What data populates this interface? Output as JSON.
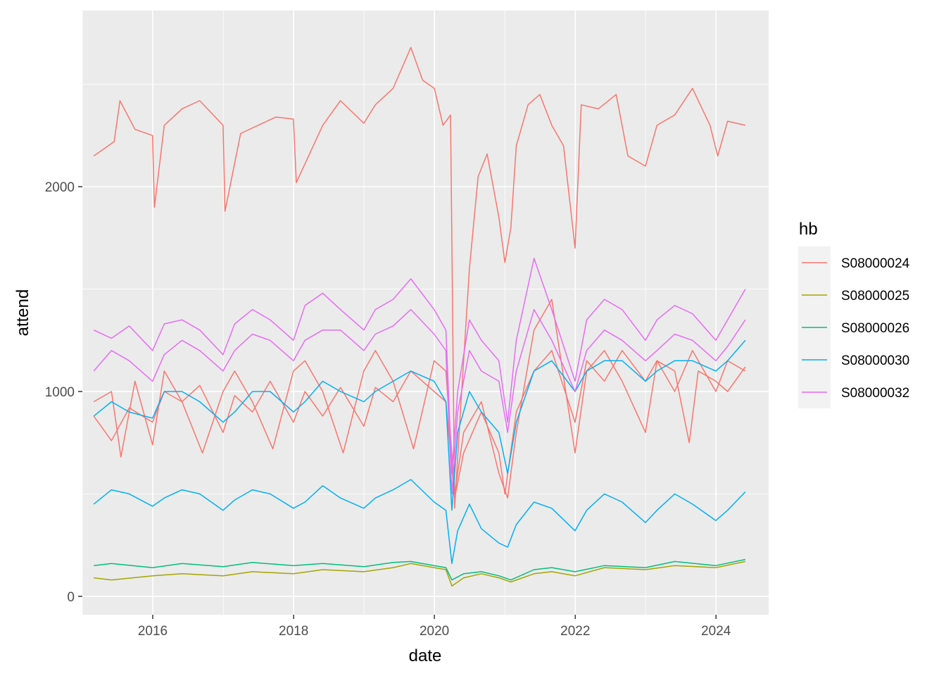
{
  "chart_data": {
    "type": "line",
    "xlabel": "date",
    "ylabel": "attend",
    "xlim": [
      "2015-01-01",
      "2024-09-30"
    ],
    "ylim": [
      -90,
      2860
    ],
    "x_ticks": [
      {
        "value": "2016-01-01",
        "label": "2016"
      },
      {
        "value": "2018-01-01",
        "label": "2018"
      },
      {
        "value": "2020-01-01",
        "label": "2020"
      },
      {
        "value": "2022-01-01",
        "label": "2022"
      },
      {
        "value": "2024-01-01",
        "label": "2024"
      }
    ],
    "x_minor_ticks": [
      "2015-01-01",
      "2017-01-01",
      "2019-01-01",
      "2021-01-01",
      "2023-01-01"
    ],
    "y_ticks": [
      0,
      1000,
      2000
    ],
    "y_minor_ticks": [
      500,
      1500,
      2500
    ],
    "grid": true,
    "legend_position": "right",
    "legend_title": "hb",
    "series": [
      {
        "name": "S08000024",
        "color": "#F8766D",
        "lines": [
          {
            "x": [
              "2015-03-01",
              "2015-06-15",
              "2015-07-15",
              "2015-10-01",
              "2015-12-31",
              "2016-01-10",
              "2016-03-01",
              "2016-06-01",
              "2016-09-01",
              "2016-12-31",
              "2017-01-10",
              "2017-04-01",
              "2017-07-01",
              "2017-10-01",
              "2017-12-31",
              "2018-01-15",
              "2018-06-01",
              "2018-09-01",
              "2018-12-31",
              "2019-03-01",
              "2019-06-01",
              "2019-09-01",
              "2019-11-01",
              "2020-01-01",
              "2020-02-15",
              "2020-03-25",
              "2020-04-15",
              "2020-05-15",
              "2020-07-01",
              "2020-08-15",
              "2020-10-01",
              "2020-12-01",
              "2021-01-01",
              "2021-02-01",
              "2021-03-01",
              "2021-05-01",
              "2021-07-01",
              "2021-09-01",
              "2021-11-01",
              "2021-12-31",
              "2022-02-01",
              "2022-05-01",
              "2022-08-01",
              "2022-10-01",
              "2022-12-31",
              "2023-03-01",
              "2023-06-01",
              "2023-09-01",
              "2023-12-01",
              "2024-01-10",
              "2024-03-01",
              "2024-06-01"
            ],
            "y": [
              2150,
              2220,
              2420,
              2280,
              2250,
              1900,
              2300,
              2380,
              2420,
              2300,
              1880,
              2260,
              2300,
              2340,
              2330,
              2020,
              2300,
              2420,
              2310,
              2400,
              2480,
              2680,
              2520,
              2480,
              2300,
              2350,
              430,
              900,
              1600,
              2050,
              2160,
              1850,
              1630,
              1800,
              2200,
              2400,
              2450,
              2300,
              2200,
              1700,
              2400,
              2380,
              2450,
              2150,
              2100,
              2300,
              2350,
              2480,
              2300,
              2150,
              2320,
              2300
            ]
          },
          {
            "x": [
              "2015-03-01",
              "2015-06-01",
              "2015-09-01",
              "2015-12-31",
              "2016-03-01",
              "2016-06-01",
              "2016-09-01",
              "2016-12-31",
              "2017-03-01",
              "2017-06-01",
              "2017-09-01",
              "2017-12-31",
              "2018-03-01",
              "2018-06-01",
              "2018-09-01",
              "2018-12-31",
              "2019-03-01",
              "2019-06-01",
              "2019-09-01",
              "2019-12-31",
              "2020-03-01",
              "2020-04-15",
              "2020-06-01",
              "2020-09-01",
              "2020-12-01",
              "2021-01-01",
              "2021-03-01",
              "2021-06-01",
              "2021-09-01",
              "2021-12-31",
              "2022-03-01",
              "2022-06-01",
              "2022-09-01",
              "2022-12-31",
              "2023-03-01",
              "2023-06-01",
              "2023-09-01",
              "2023-12-31",
              "2024-03-01",
              "2024-06-01"
            ],
            "y": [
              880,
              760,
              920,
              850,
              1000,
              950,
              1030,
              800,
              980,
              900,
              1050,
              850,
              1000,
              880,
              1020,
              830,
              1020,
              950,
              1100,
              1000,
              950,
              480,
              700,
              900,
              700,
              500,
              900,
              1100,
              1200,
              850,
              1150,
              1050,
              1200,
              1050,
              1150,
              1000,
              1200,
              1000,
              1150,
              1100
            ]
          },
          {
            "x": [
              "2015-03-01",
              "2015-06-01",
              "2015-07-20",
              "2015-10-01",
              "2015-12-31",
              "2016-03-01",
              "2016-06-01",
              "2016-09-15",
              "2016-12-31",
              "2017-03-01",
              "2017-06-01",
              "2017-09-15",
              "2017-12-31",
              "2018-03-01",
              "2018-06-01",
              "2018-09-15",
              "2018-12-31",
              "2019-03-01",
              "2019-06-01",
              "2019-09-15",
              "2019-12-31",
              "2020-03-01",
              "2020-04-15",
              "2020-06-01",
              "2020-09-01",
              "2020-12-01",
              "2021-01-15",
              "2021-03-01",
              "2021-06-01",
              "2021-09-01",
              "2021-12-31",
              "2022-03-01",
              "2022-06-01",
              "2022-09-01",
              "2022-12-31",
              "2023-03-01",
              "2023-06-01",
              "2023-08-15",
              "2023-10-01",
              "2023-12-31",
              "2024-03-01",
              "2024-06-01"
            ],
            "y": [
              950,
              1000,
              680,
              1050,
              740,
              1100,
              950,
              700,
              1000,
              1100,
              950,
              720,
              1100,
              1150,
              1000,
              700,
              1100,
              1200,
              1050,
              720,
              1150,
              1100,
              500,
              800,
              950,
              600,
              480,
              800,
              1300,
              1450,
              700,
              1100,
              1200,
              1050,
              800,
              1150,
              1100,
              750,
              1100,
              1050,
              1000,
              1120
            ]
          }
        ]
      },
      {
        "name": "S08000025",
        "color": "#A3A500",
        "lines": [
          {
            "x": [
              "2015-03-01",
              "2015-06-01",
              "2015-12-31",
              "2016-06-01",
              "2016-12-31",
              "2017-06-01",
              "2017-12-31",
              "2018-06-01",
              "2018-12-31",
              "2019-06-01",
              "2019-09-01",
              "2019-12-31",
              "2020-03-01",
              "2020-04-01",
              "2020-06-01",
              "2020-09-01",
              "2020-12-01",
              "2021-02-01",
              "2021-06-01",
              "2021-09-01",
              "2021-12-31",
              "2022-06-01",
              "2022-12-31",
              "2023-06-01",
              "2023-12-31",
              "2024-06-01"
            ],
            "y": [
              90,
              80,
              100,
              110,
              100,
              120,
              110,
              130,
              120,
              140,
              160,
              140,
              130,
              50,
              90,
              110,
              90,
              70,
              110,
              120,
              100,
              140,
              130,
              150,
              140,
              170
            ]
          }
        ]
      },
      {
        "name": "S08000026",
        "color": "#00BF7D",
        "lines": [
          {
            "x": [
              "2015-03-01",
              "2015-06-01",
              "2015-12-31",
              "2016-06-01",
              "2016-12-31",
              "2017-06-01",
              "2017-12-31",
              "2018-06-01",
              "2018-12-31",
              "2019-06-01",
              "2019-09-01",
              "2019-12-31",
              "2020-03-01",
              "2020-04-01",
              "2020-06-01",
              "2020-09-01",
              "2020-12-01",
              "2021-02-01",
              "2021-06-01",
              "2021-09-01",
              "2021-12-31",
              "2022-06-01",
              "2022-12-31",
              "2023-06-01",
              "2023-12-31",
              "2024-06-01"
            ],
            "y": [
              150,
              160,
              140,
              160,
              145,
              165,
              150,
              160,
              145,
              165,
              170,
              150,
              140,
              80,
              110,
              120,
              100,
              80,
              130,
              140,
              120,
              150,
              140,
              170,
              150,
              180
            ]
          }
        ]
      },
      {
        "name": "S08000030",
        "color": "#00B0F6",
        "lines": [
          {
            "x": [
              "2015-03-01",
              "2015-06-01",
              "2015-09-01",
              "2015-12-31",
              "2016-03-01",
              "2016-06-01",
              "2016-09-01",
              "2016-12-31",
              "2017-03-01",
              "2017-06-01",
              "2017-09-01",
              "2017-12-31",
              "2018-03-01",
              "2018-06-01",
              "2018-09-01",
              "2018-12-31",
              "2019-03-01",
              "2019-06-01",
              "2019-09-01",
              "2019-12-31",
              "2020-03-01",
              "2020-04-01",
              "2020-05-01",
              "2020-07-01",
              "2020-09-01",
              "2020-12-01",
              "2021-01-15",
              "2021-03-01",
              "2021-06-01",
              "2021-09-01",
              "2021-12-31",
              "2022-03-01",
              "2022-06-01",
              "2022-09-01",
              "2022-12-31",
              "2023-03-01",
              "2023-06-01",
              "2023-09-01",
              "2023-12-31",
              "2024-03-01",
              "2024-06-01"
            ],
            "y": [
              880,
              950,
              900,
              870,
              1000,
              1000,
              950,
              850,
              900,
              1000,
              1000,
              900,
              950,
              1050,
              1000,
              950,
              1000,
              1050,
              1100,
              1050,
              950,
              420,
              800,
              1000,
              900,
              800,
              600,
              850,
              1100,
              1150,
              1000,
              1100,
              1150,
              1150,
              1050,
              1100,
              1150,
              1150,
              1100,
              1150,
              1250
            ]
          },
          {
            "x": [
              "2015-03-01",
              "2015-06-01",
              "2015-09-01",
              "2015-12-31",
              "2016-03-01",
              "2016-06-01",
              "2016-09-01",
              "2016-12-31",
              "2017-03-01",
              "2017-06-01",
              "2017-09-01",
              "2017-12-31",
              "2018-03-01",
              "2018-06-01",
              "2018-09-01",
              "2018-12-31",
              "2019-03-01",
              "2019-06-01",
              "2019-09-01",
              "2019-12-31",
              "2020-03-01",
              "2020-04-01",
              "2020-05-01",
              "2020-07-01",
              "2020-09-01",
              "2020-12-01",
              "2021-01-15",
              "2021-03-01",
              "2021-06-01",
              "2021-09-01",
              "2021-12-31",
              "2022-03-01",
              "2022-06-01",
              "2022-09-01",
              "2022-12-31",
              "2023-03-01",
              "2023-06-01",
              "2023-09-01",
              "2023-12-31",
              "2024-03-01",
              "2024-06-01"
            ],
            "y": [
              450,
              520,
              500,
              440,
              480,
              520,
              500,
              420,
              470,
              520,
              500,
              430,
              460,
              540,
              480,
              430,
              480,
              520,
              570,
              460,
              420,
              160,
              320,
              450,
              330,
              260,
              240,
              350,
              460,
              430,
              320,
              420,
              500,
              460,
              360,
              420,
              500,
              450,
              370,
              420,
              510
            ]
          }
        ]
      },
      {
        "name": "S08000032",
        "color": "#E76BF3",
        "lines": [
          {
            "x": [
              "2015-03-01",
              "2015-06-01",
              "2015-09-01",
              "2015-12-31",
              "2016-03-01",
              "2016-06-01",
              "2016-09-01",
              "2016-12-31",
              "2017-03-01",
              "2017-06-01",
              "2017-09-01",
              "2017-12-31",
              "2018-03-01",
              "2018-06-01",
              "2018-09-01",
              "2018-12-31",
              "2019-03-01",
              "2019-06-01",
              "2019-09-01",
              "2019-12-31",
              "2020-03-01",
              "2020-04-01",
              "2020-05-01",
              "2020-07-01",
              "2020-09-01",
              "2020-12-01",
              "2021-01-15",
              "2021-03-01",
              "2021-06-01",
              "2021-09-01",
              "2021-12-31",
              "2022-03-01",
              "2022-06-01",
              "2022-09-01",
              "2022-12-31",
              "2023-03-01",
              "2023-06-01",
              "2023-09-01",
              "2023-12-31",
              "2024-03-01",
              "2024-06-01"
            ],
            "y": [
              1300,
              1260,
              1320,
              1200,
              1330,
              1350,
              1300,
              1180,
              1330,
              1400,
              1350,
              1250,
              1420,
              1480,
              1400,
              1300,
              1400,
              1450,
              1550,
              1400,
              1300,
              600,
              1000,
              1350,
              1250,
              1150,
              850,
              1250,
              1650,
              1400,
              1050,
              1350,
              1450,
              1400,
              1250,
              1350,
              1420,
              1380,
              1250,
              1350,
              1500
            ]
          },
          {
            "x": [
              "2015-03-01",
              "2015-06-01",
              "2015-09-01",
              "2015-12-31",
              "2016-03-01",
              "2016-06-01",
              "2016-09-01",
              "2016-12-31",
              "2017-03-01",
              "2017-06-01",
              "2017-09-01",
              "2017-12-31",
              "2018-03-01",
              "2018-06-01",
              "2018-09-01",
              "2018-12-31",
              "2019-03-01",
              "2019-06-01",
              "2019-09-01",
              "2019-12-31",
              "2020-03-01",
              "2020-04-01",
              "2020-05-01",
              "2020-07-01",
              "2020-09-01",
              "2020-12-01",
              "2021-01-15",
              "2021-03-01",
              "2021-06-01",
              "2021-09-01",
              "2021-12-31",
              "2022-03-01",
              "2022-06-01",
              "2022-09-01",
              "2022-12-31",
              "2023-03-01",
              "2023-06-01",
              "2023-09-01",
              "2023-12-31",
              "2024-03-01",
              "2024-06-01"
            ],
            "y": [
              1100,
              1200,
              1150,
              1050,
              1180,
              1250,
              1200,
              1100,
              1200,
              1280,
              1250,
              1150,
              1250,
              1300,
              1300,
              1200,
              1280,
              1320,
              1400,
              1280,
              1200,
              500,
              900,
              1200,
              1100,
              1050,
              800,
              1100,
              1400,
              1250,
              1000,
              1200,
              1300,
              1250,
              1150,
              1200,
              1280,
              1250,
              1150,
              1220,
              1350
            ]
          }
        ]
      }
    ]
  }
}
